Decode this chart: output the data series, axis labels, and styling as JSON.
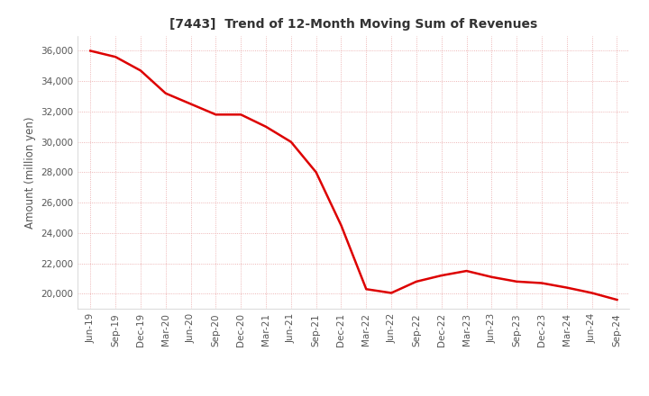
{
  "title": "[7443]  Trend of 12-Month Moving Sum of Revenues",
  "ylabel": "Amount (million yen)",
  "line_color": "#dd0000",
  "background_color": "#ffffff",
  "grid_color": "#e8a0a0",
  "ylim": [
    19000,
    37000
  ],
  "yticks": [
    20000,
    22000,
    24000,
    26000,
    28000,
    30000,
    32000,
    34000,
    36000
  ],
  "x_labels": [
    "Jun-19",
    "Sep-19",
    "Dec-19",
    "Mar-20",
    "Jun-20",
    "Sep-20",
    "Dec-20",
    "Mar-21",
    "Jun-21",
    "Sep-21",
    "Dec-21",
    "Mar-22",
    "Jun-22",
    "Sep-22",
    "Dec-22",
    "Mar-23",
    "Jun-23",
    "Sep-23",
    "Dec-23",
    "Mar-24",
    "Jun-24",
    "Sep-24"
  ],
  "values": [
    36000,
    35600,
    34700,
    33200,
    32500,
    31800,
    31800,
    31000,
    30000,
    28000,
    24500,
    20300,
    20050,
    20800,
    21200,
    21500,
    21100,
    20800,
    20700,
    20400,
    20050,
    19600
  ],
  "title_fontsize": 10,
  "tick_fontsize": 7.5,
  "ylabel_fontsize": 8.5,
  "tick_color": "#555555",
  "line_width": 1.8
}
